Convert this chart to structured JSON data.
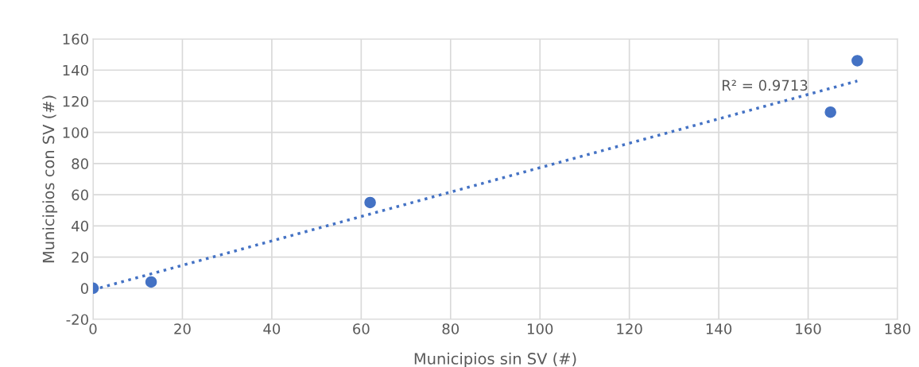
{
  "chart_data": {
    "type": "scatter",
    "xlabel": "Municipios sin SV (#)",
    "ylabel": "Municipios con SV (#)",
    "x": [
      0,
      13,
      62,
      165,
      171
    ],
    "series": [
      {
        "color": "#4472c4",
        "marker": "circle",
        "values": [
          0,
          4,
          55,
          113,
          146
        ]
      },
      {
        "type": "line",
        "color": "#4472c4",
        "line_style": "dotted",
        "marker": "none",
        "x": [
          0,
          171
        ],
        "values": [
          -1,
          133
        ]
      }
    ],
    "annotations": [
      "R² = 0.9713"
    ],
    "xlim": [
      0,
      180
    ],
    "xticks": [
      0,
      20,
      40,
      60,
      80,
      100,
      120,
      140,
      160,
      180
    ],
    "ylim": [
      -20,
      160
    ],
    "yticks": [
      -20,
      0,
      20,
      40,
      60,
      80,
      100,
      120,
      140,
      160
    ],
    "grid": true,
    "legend": false
  }
}
